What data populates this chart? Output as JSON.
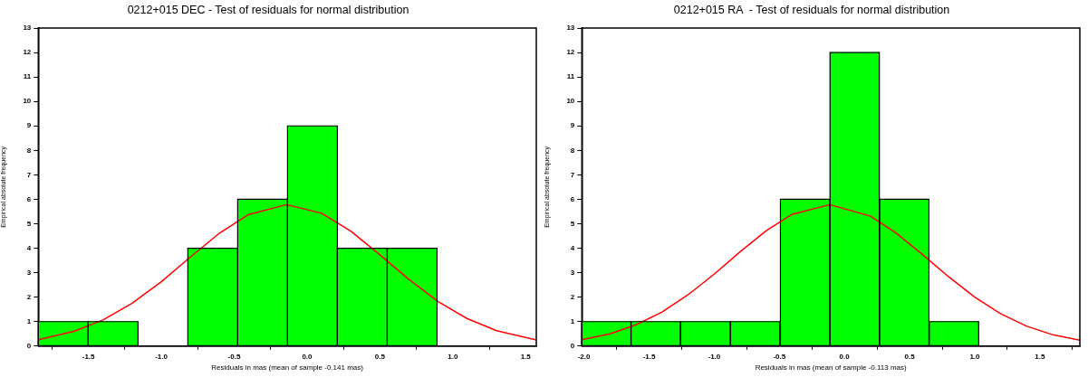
{
  "chart_data": [
    {
      "type": "histogram",
      "title": "0212+015 DEC - Test of residuals for normal distribution",
      "xlabel": "Residuals in mas (mean of sample -0.141 mas)",
      "ylabel": "Empirical absolute frequency",
      "bins": [
        -1.844,
        -1.502,
        -1.16,
        -0.818,
        -0.476,
        -0.134,
        0.208,
        0.55,
        0.892
      ],
      "values": [
        1,
        1,
        0,
        4,
        6,
        9,
        4,
        4
      ],
      "color": "#00ff00",
      "xlim": [
        -1.844,
        1.573
      ],
      "xticks": [
        -1.5,
        {
          "value": -1,
          "label": "-1.0"
        },
        -0.5,
        {
          "value": 0,
          "label": "0.0"
        },
        0.5,
        {
          "value": 1,
          "label": "1.0"
        },
        1.5
      ],
      "ylim": [
        0,
        13
      ],
      "yticks": [
        0,
        1,
        2,
        3,
        4,
        5,
        6,
        7,
        8,
        9,
        10,
        11,
        12,
        13
      ],
      "grid": false,
      "legend": false,
      "series": [
        {
          "type": "line",
          "color": "#ff0000",
          "x": [
            -1.844,
            -1.6,
            -1.4,
            -1.2,
            -1.0,
            -0.8,
            -0.6,
            -0.4,
            -0.141,
            0.1,
            0.3,
            0.5,
            0.7,
            0.9,
            1.1,
            1.3,
            1.573
          ],
          "values": [
            0.26,
            0.6,
            1.07,
            1.75,
            2.63,
            3.64,
            4.62,
            5.38,
            5.78,
            5.43,
            4.7,
            3.73,
            2.72,
            1.82,
            1.12,
            0.63,
            0.25
          ]
        }
      ]
    },
    {
      "type": "histogram",
      "title": "0212+015 RA  - Test of residuals for normal distribution",
      "xlabel": "Residuals in mas (mean of sample -0.113 mas)",
      "ylabel": "Empirical absolute frequency",
      "bins": [
        -2.016,
        -1.64,
        -1.259,
        -0.876,
        -0.494,
        -0.111,
        0.268,
        0.65,
        1.032
      ],
      "values": [
        1,
        1,
        1,
        1,
        6,
        12,
        6,
        1
      ],
      "color": "#00ff00",
      "xlim": [
        -2.016,
        1.807
      ],
      "xticks": [
        {
          "value": -2,
          "label": "-2.0"
        },
        -1.5,
        {
          "value": -1,
          "label": "-1.0"
        },
        -0.5,
        {
          "value": 0,
          "label": "0.0"
        },
        0.5,
        {
          "value": 1,
          "label": "1.0"
        },
        1.5
      ],
      "ylim": [
        0,
        13
      ],
      "yticks": [
        0,
        1,
        2,
        3,
        4,
        5,
        6,
        7,
        8,
        9,
        10,
        11,
        12,
        13
      ],
      "grid": false,
      "legend": false,
      "series": [
        {
          "type": "line",
          "color": "#ff0000",
          "x": [
            -2.016,
            -1.8,
            -1.6,
            -1.4,
            -1.2,
            -1.0,
            -0.8,
            -0.6,
            -0.4,
            -0.113,
            0.2,
            0.4,
            0.6,
            0.8,
            1.0,
            1.2,
            1.4,
            1.6,
            1.807
          ],
          "values": [
            0.26,
            0.5,
            0.87,
            1.39,
            2.1,
            2.94,
            3.86,
            4.72,
            5.39,
            5.78,
            5.31,
            4.61,
            3.74,
            2.83,
            2.0,
            1.32,
            0.81,
            0.46,
            0.24
          ]
        }
      ]
    }
  ]
}
